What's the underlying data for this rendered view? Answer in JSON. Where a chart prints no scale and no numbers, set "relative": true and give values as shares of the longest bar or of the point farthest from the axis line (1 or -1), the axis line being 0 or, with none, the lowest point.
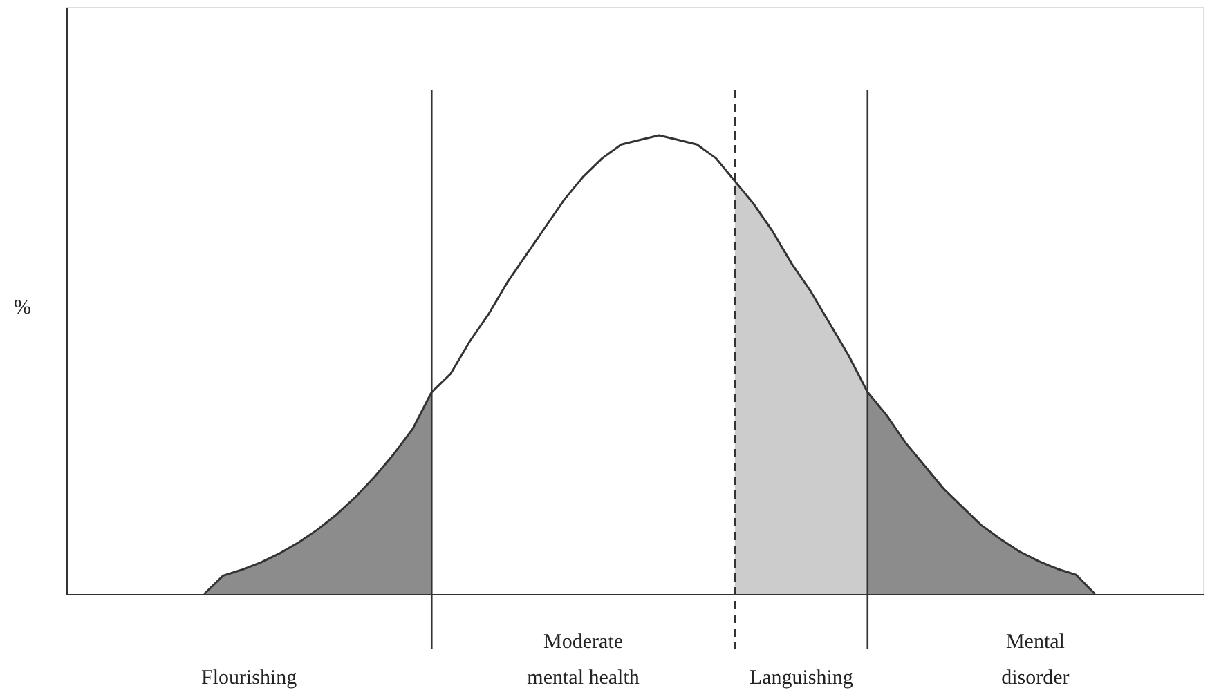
{
  "chart_data": {
    "type": "line",
    "relative": true,
    "categories": [
      null,
      null,
      null,
      null,
      null,
      null,
      null,
      null,
      null,
      null,
      null,
      null,
      null,
      null,
      null,
      null,
      null,
      null,
      null,
      null,
      null,
      null,
      null,
      null,
      null,
      null,
      null,
      null,
      null,
      null,
      null,
      null,
      null,
      null,
      null,
      null,
      null,
      null,
      null,
      null,
      null,
      null,
      null,
      null,
      null,
      null,
      null,
      null
    ],
    "series": [
      {
        "type": "area",
        "color": "#8c8c8c",
        "values": [
          0,
          0.04,
          0.053,
          0.069,
          0.089,
          0.113,
          0.141,
          0.174,
          0.212,
          0.256,
          0.305,
          0.36,
          0.44,
          null,
          null,
          null,
          null,
          null,
          null,
          null,
          null,
          null,
          null,
          null,
          null,
          null,
          null,
          null,
          null,
          null,
          null,
          null,
          null,
          null,
          null,
          null,
          null,
          null,
          null,
          null,
          null,
          null,
          null,
          null,
          null,
          null,
          null,
          null
        ]
      },
      {
        "type": "area",
        "color": "#cccccc",
        "values": [
          null,
          null,
          null,
          null,
          null,
          null,
          null,
          null,
          null,
          null,
          null,
          null,
          null,
          null,
          null,
          null,
          null,
          null,
          null,
          null,
          null,
          null,
          null,
          null,
          null,
          null,
          null,
          null,
          0.9,
          0.85,
          0.79,
          0.72,
          0.66,
          0.59,
          0.52,
          0.44,
          null,
          null,
          null,
          null,
          null,
          null,
          null,
          null,
          null,
          null,
          null,
          null
        ]
      },
      {
        "type": "area",
        "color": "#8c8c8c",
        "values": [
          null,
          null,
          null,
          null,
          null,
          null,
          null,
          null,
          null,
          null,
          null,
          null,
          null,
          null,
          null,
          null,
          null,
          null,
          null,
          null,
          null,
          null,
          null,
          null,
          null,
          null,
          null,
          null,
          null,
          null,
          null,
          null,
          null,
          null,
          null,
          0.44,
          0.39,
          0.33,
          0.28,
          0.23,
          0.19,
          0.15,
          0.12,
          0.093,
          0.072,
          0.055,
          0.042,
          0
        ]
      },
      {
        "color": "#333333",
        "line_style": "solid",
        "values": [
          0,
          0.04,
          0.053,
          0.069,
          0.089,
          0.113,
          0.141,
          0.174,
          0.212,
          0.256,
          0.305,
          0.36,
          0.44,
          0.48,
          0.55,
          0.61,
          0.68,
          0.74,
          0.8,
          0.86,
          0.91,
          0.95,
          0.98,
          0.99,
          1,
          0.99,
          0.98,
          0.95,
          0.9,
          0.85,
          0.79,
          0.72,
          0.66,
          0.59,
          0.52,
          0.44,
          0.39,
          0.33,
          0.28,
          0.23,
          0.19,
          0.15,
          0.12,
          0.093,
          0.072,
          0.055,
          0.042,
          0
        ]
      }
    ],
    "annotations": [
      "Flourishing",
      "Moderate\nmental health",
      "Languishing",
      "Mental\ndisorder",
      "%"
    ]
  }
}
